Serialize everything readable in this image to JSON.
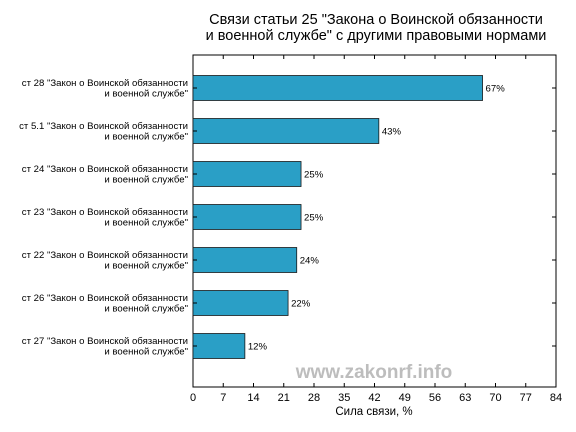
{
  "watermark": "www.zakonrf.info",
  "chart_data": {
    "type": "bar",
    "orientation": "horizontal",
    "title": "Связи статьи 25 \"Закона о Воинской обязанности и военной службе\" с другими правовыми нормами",
    "title_lines": [
      "Связи статьи 25 \"Закона о Воинской обязанности",
      "и военной службе\" с другими правовыми нормами"
    ],
    "xlabel": "Сила связи, %",
    "ylabel": "",
    "xlim": [
      0,
      84
    ],
    "xticks": [
      0,
      7,
      14,
      21,
      28,
      35,
      42,
      49,
      56,
      63,
      70,
      77,
      84
    ],
    "grid": false,
    "legend": "none",
    "bar_color": "#2a9fc6",
    "bar_edge_color": "#1a1a1a",
    "value_suffix": "%",
    "categories": [
      [
        "ст 28 \"Закон о Воинской обязанности",
        "и военной службе\""
      ],
      [
        "ст 5.1 \"Закон о Воинской обязанности",
        "и военной службе\""
      ],
      [
        "ст 24 \"Закон о Воинской обязанности",
        "и военной службе\""
      ],
      [
        "ст 23 \"Закон о Воинской обязанности",
        "и военной службе\""
      ],
      [
        "ст 22 \"Закон о Воинской обязанности",
        "и военной службе\""
      ],
      [
        "ст 26 \"Закон о Воинской обязанности",
        "и военной службе\""
      ],
      [
        "ст 27 \"Закон о Воинской обязанности",
        "и военной службе\""
      ]
    ],
    "values": [
      67,
      43,
      25,
      25,
      24,
      22,
      12
    ]
  }
}
